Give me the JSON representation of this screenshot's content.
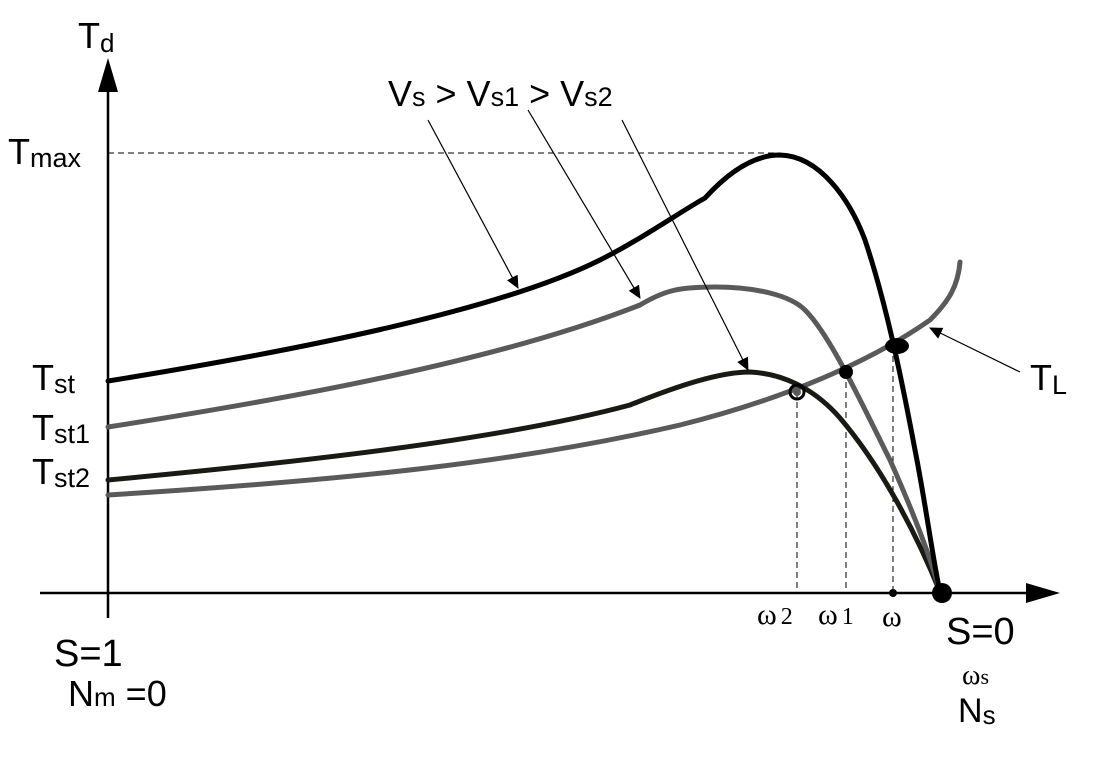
{
  "axes": {
    "y_symbol": "T",
    "y_subscript": "d",
    "x_left_slip": "S=1",
    "x_left_speed_main": "N",
    "x_left_speed_sub": "m",
    "x_left_speed_tail": " =0",
    "x_right_slip": "S=0",
    "x_right_omega_main": "ω",
    "x_right_omega_sub": "s",
    "x_right_speed_main": "N",
    "x_right_speed_sub": "s"
  },
  "y_labels": {
    "tmax_main": "T",
    "tmax_sub": "max",
    "tst_main": "T",
    "tst_sub": "st",
    "tst1_main": "T",
    "tst1_sub": "st1",
    "tst2_main": "T",
    "tst2_sub": "st2"
  },
  "x_markers": {
    "omega2_main": "ω",
    "omega2_sub": "2",
    "omega1_main": "ω",
    "omega1_sub": "1",
    "omega_main": "ω"
  },
  "voltage_label": {
    "v1": "V",
    "s1": "s",
    "gt1": " > ",
    "v2": "V",
    "s2": "s1",
    "gt2": " > ",
    "v3": "V",
    "s3": "s2"
  },
  "load_label": {
    "main": "T",
    "sub": "L"
  },
  "colors": {
    "curve_vs": "#000000",
    "curve_vs1": "#5a5a5a",
    "curve_vs2": "#1a1a14",
    "curve_load": "#5a5a5a",
    "axis": "#000000"
  }
}
